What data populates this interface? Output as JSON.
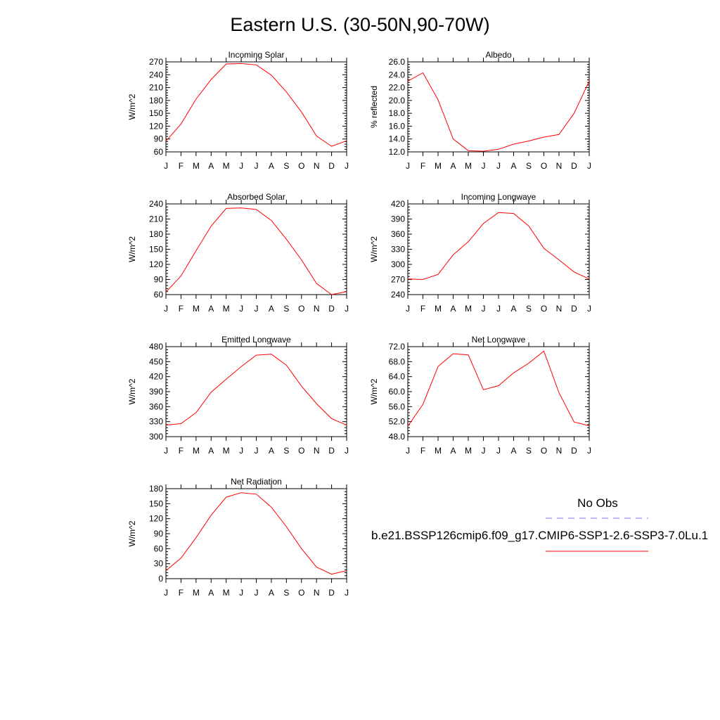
{
  "page": {
    "title": "Eastern U.S. (30-50N,90-70W)"
  },
  "legend": {
    "obs_label": "No Obs",
    "obs_color": "#7777ee",
    "model_label": "b.e21.BSSP126cmip6.f09_g17.CMIP6-SSP1-2.6-SSP3-7.0Lu.1",
    "model_color": "#ff0000"
  },
  "chart_data": [
    {
      "type": "line",
      "title": "Incoming Solar",
      "ylabel": "W/m^2",
      "ylim": [
        60,
        270
      ],
      "yticks": [
        "60",
        "90",
        "120",
        "150",
        "180",
        "210",
        "240",
        "270"
      ],
      "categories": [
        "J",
        "F",
        "M",
        "A",
        "M",
        "J",
        "J",
        "A",
        "S",
        "O",
        "N",
        "D",
        "J"
      ],
      "series": [
        {
          "values": [
            85,
            125,
            183,
            229,
            265,
            266,
            263,
            239,
            200,
            153,
            97,
            73,
            86
          ]
        }
      ]
    },
    {
      "type": "line",
      "title": "Albedo",
      "ylabel": "% reflected",
      "ylim": [
        12.0,
        26.0
      ],
      "yticks": [
        "12.0",
        "14.0",
        "16.0",
        "18.0",
        "20.0",
        "22.0",
        "24.0",
        "26.0"
      ],
      "categories": [
        "J",
        "F",
        "M",
        "A",
        "M",
        "J",
        "J",
        "A",
        "S",
        "O",
        "N",
        "D",
        "J"
      ],
      "series": [
        {
          "values": [
            23.0,
            24.3,
            20.1,
            14.0,
            12.2,
            12.1,
            12.4,
            13.2,
            13.7,
            14.3,
            14.7,
            18.0,
            23.0
          ]
        }
      ]
    },
    {
      "type": "line",
      "title": "Absorbed Solar",
      "ylabel": "W/m^2",
      "ylim": [
        60,
        240
      ],
      "yticks": [
        "60",
        "90",
        "120",
        "150",
        "180",
        "210",
        "240"
      ],
      "categories": [
        "J",
        "F",
        "M",
        "A",
        "M",
        "J",
        "J",
        "A",
        "S",
        "O",
        "N",
        "D",
        "J"
      ],
      "series": [
        {
          "values": [
            65,
            97,
            147,
            196,
            231,
            232,
            229,
            207,
            170,
            129,
            82,
            60,
            66
          ]
        }
      ]
    },
    {
      "type": "line",
      "title": "Incoming Longwave",
      "ylabel": "W/m^2",
      "ylim": [
        240,
        420
      ],
      "yticks": [
        "240",
        "270",
        "300",
        "330",
        "360",
        "390",
        "420"
      ],
      "categories": [
        "J",
        "F",
        "M",
        "A",
        "M",
        "J",
        "J",
        "A",
        "S",
        "O",
        "N",
        "D",
        "J"
      ],
      "series": [
        {
          "values": [
            271,
            270,
            280,
            319,
            345,
            381,
            403,
            401,
            376,
            332,
            309,
            285,
            271
          ]
        }
      ]
    },
    {
      "type": "line",
      "title": "Emitted Longwave",
      "ylabel": "W/m^2",
      "ylim": [
        300,
        480
      ],
      "yticks": [
        "300",
        "330",
        "360",
        "390",
        "420",
        "450",
        "480"
      ],
      "categories": [
        "J",
        "F",
        "M",
        "A",
        "M",
        "J",
        "J",
        "A",
        "S",
        "O",
        "N",
        "D",
        "J"
      ],
      "series": [
        {
          "values": [
            323,
            326,
            348,
            389,
            415,
            440,
            463,
            465,
            443,
            401,
            366,
            336,
            323
          ]
        }
      ]
    },
    {
      "type": "line",
      "title": "Net Longwave",
      "ylabel": "W/m^2",
      "ylim": [
        48.0,
        72.0
      ],
      "yticks": [
        "48.0",
        "52.0",
        "56.0",
        "60.0",
        "64.0",
        "68.0",
        "72.0"
      ],
      "categories": [
        "J",
        "F",
        "M",
        "A",
        "M",
        "J",
        "J",
        "A",
        "S",
        "O",
        "N",
        "D",
        "J"
      ],
      "series": [
        {
          "values": [
            50.8,
            56.6,
            66.7,
            70.1,
            69.8,
            60.5,
            61.6,
            65.0,
            67.6,
            70.8,
            59.7,
            51.9,
            50.9
          ]
        }
      ]
    },
    {
      "type": "line",
      "title": "Net Radiation",
      "ylabel": "W/m^2",
      "ylim": [
        0,
        180
      ],
      "yticks": [
        "0",
        "30",
        "60",
        "90",
        "120",
        "150",
        "180"
      ],
      "categories": [
        "J",
        "F",
        "M",
        "A",
        "M",
        "J",
        "J",
        "A",
        "S",
        "O",
        "N",
        "D",
        "J"
      ],
      "series": [
        {
          "values": [
            16,
            41,
            82,
            127,
            163,
            172,
            169,
            143,
            104,
            60,
            23,
            9,
            16
          ]
        }
      ]
    }
  ]
}
